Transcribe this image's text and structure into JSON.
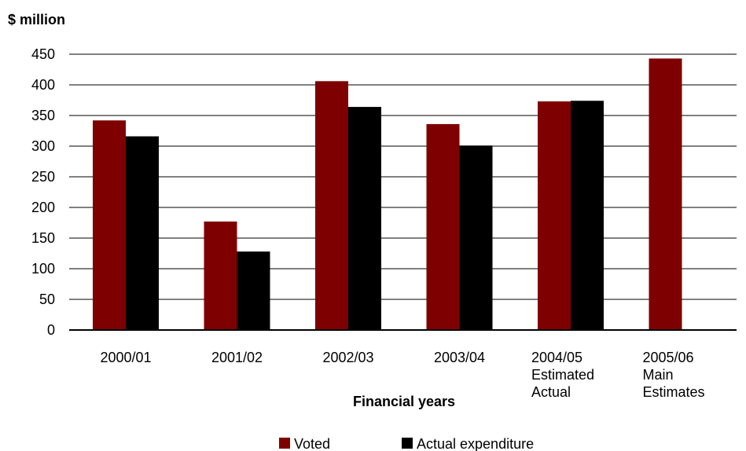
{
  "chart_data": {
    "type": "bar",
    "title": "",
    "ylabel": "$ million",
    "xlabel": "Financial years",
    "ylim": [
      0,
      450
    ],
    "yticks": [
      0,
      50,
      100,
      150,
      200,
      250,
      300,
      350,
      400,
      450
    ],
    "grid": true,
    "legend_position": "bottom",
    "categories": [
      [
        "2000/01"
      ],
      [
        "2001/02"
      ],
      [
        "2002/03"
      ],
      [
        "2003/04"
      ],
      [
        "2004/05",
        "Estimated",
        "Actual"
      ],
      [
        "2005/06",
        "Main",
        "Estimates"
      ]
    ],
    "series": [
      {
        "name": "Voted",
        "color": "#7f0000",
        "values": [
          342,
          177,
          406,
          336,
          373,
          443
        ]
      },
      {
        "name": "Actual expenditure",
        "color": "#000000",
        "values": [
          316,
          128,
          364,
          301,
          374,
          null
        ]
      }
    ]
  }
}
